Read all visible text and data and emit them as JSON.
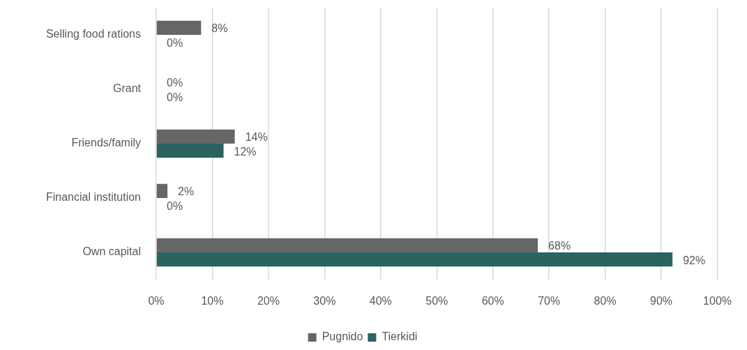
{
  "chart_data": {
    "type": "bar",
    "orientation": "horizontal",
    "categories": [
      "Selling food rations",
      "Grant",
      "Friends/family",
      "Financial institution",
      "Own capital"
    ],
    "series": [
      {
        "name": "Pugnido",
        "color": "#666666",
        "values": [
          8,
          0,
          14,
          2,
          68
        ],
        "value_labels": [
          "8%",
          "0%",
          "14%",
          "2%",
          "68%"
        ]
      },
      {
        "name": "Tierkidi",
        "color": "#2b6360",
        "values": [
          0,
          0,
          12,
          0,
          92
        ],
        "value_labels": [
          "0%",
          "0%",
          "12%",
          "0%",
          "92%"
        ]
      }
    ],
    "xlim": [
      0,
      100
    ],
    "xticks": [
      {
        "value": 0,
        "label": "0%"
      },
      {
        "value": 10,
        "label": "10%"
      },
      {
        "value": 20,
        "label": "20%"
      },
      {
        "value": 30,
        "label": "30%"
      },
      {
        "value": 40,
        "label": "40%"
      },
      {
        "value": 50,
        "label": "50%"
      },
      {
        "value": 60,
        "label": "60%"
      },
      {
        "value": 70,
        "label": "70%"
      },
      {
        "value": 80,
        "label": "80%"
      },
      {
        "value": 90,
        "label": "90%"
      },
      {
        "value": 100,
        "label": "100%"
      }
    ],
    "grid": "x",
    "legend": "bottom"
  }
}
